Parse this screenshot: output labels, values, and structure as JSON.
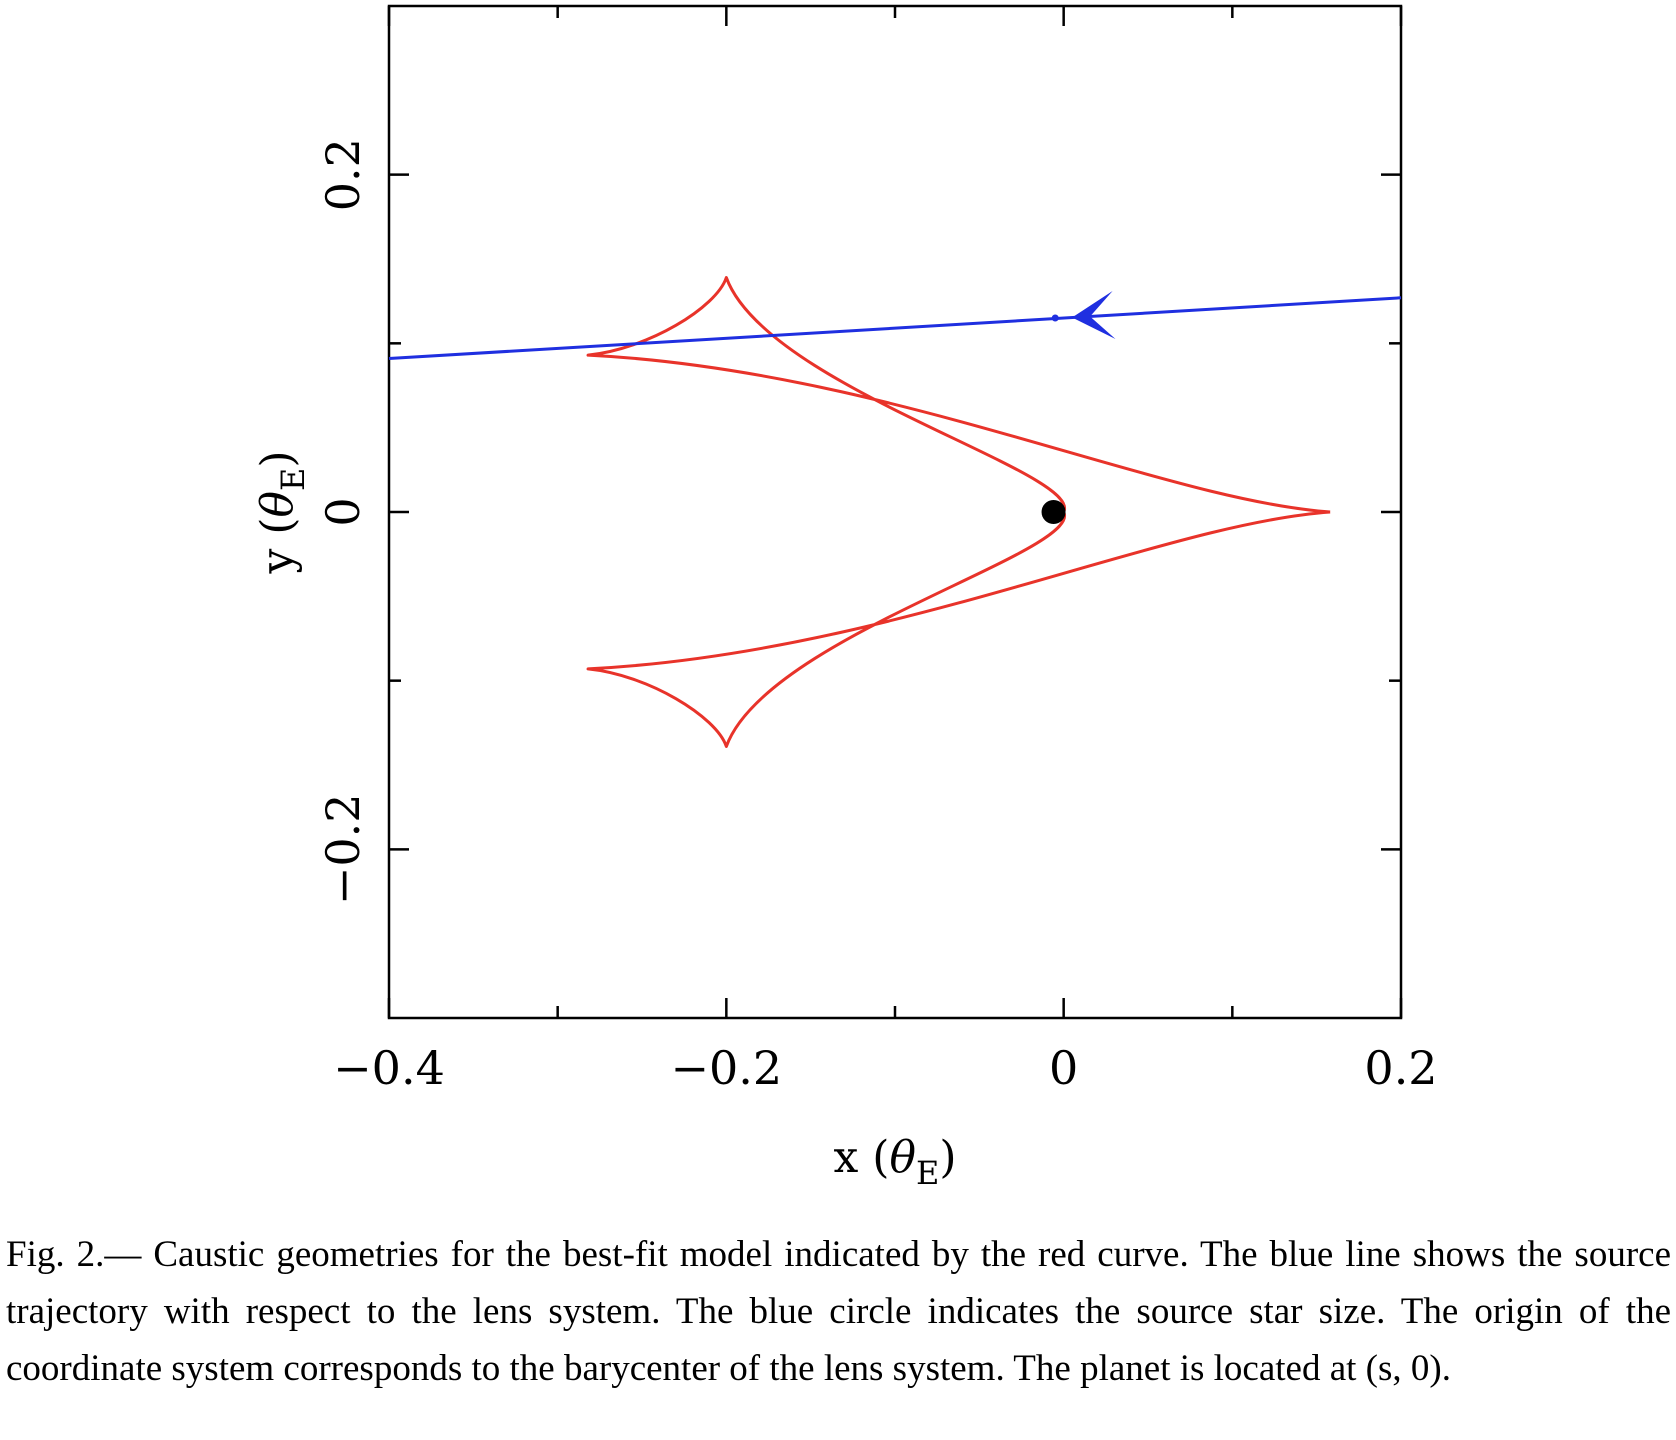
{
  "chart_data": {
    "type": "line",
    "xlabel": "x",
    "xlabel_unit_symbol": "θ",
    "xlabel_unit_sub": "E",
    "ylabel": "y",
    "ylabel_unit_symbol": "θ",
    "ylabel_unit_sub": "E",
    "xlim": [
      -0.4,
      0.2
    ],
    "ylim": [
      -0.3,
      0.3
    ],
    "x_tick_labels": [
      {
        "value": -0.4,
        "label": "−0.4"
      },
      {
        "value": -0.2,
        "label": "−0.2"
      },
      {
        "value": 0,
        "label": "0"
      },
      {
        "value": 0.2,
        "label": "0.2"
      }
    ],
    "y_tick_labels": [
      {
        "value": -0.2,
        "label": "−0.2"
      },
      {
        "value": 0,
        "label": "0"
      },
      {
        "value": 0.2,
        "label": "0.2"
      }
    ],
    "x_minor_ticks": [
      -0.3,
      -0.1,
      0.1
    ],
    "y_minor_ticks": [
      -0.1,
      0.1
    ],
    "grid": false,
    "caustic": {
      "color": "#e8332a",
      "cusps": [
        {
          "x": 0.158,
          "y": 0.0
        },
        {
          "x": -0.282,
          "y": 0.093
        },
        {
          "x": -0.2,
          "y": 0.139
        },
        {
          "x": -0.282,
          "y": -0.093
        },
        {
          "x": -0.2,
          "y": -0.139
        }
      ],
      "inner_vertex": {
        "x": 0.0,
        "y": 0.0
      }
    },
    "trajectory": {
      "color": "#1f2fe0",
      "start": {
        "x": 0.2,
        "y": 0.127
      },
      "end": {
        "x": -0.4,
        "y": 0.091
      },
      "arrow_at_x": 0.005
    },
    "source_star": {
      "x": -0.005,
      "y": 0.115,
      "color": "#1f2fe0"
    },
    "marker": {
      "x": -0.006,
      "y": 0.0,
      "color": "#000000"
    }
  },
  "caption": {
    "text": "Fig. 2.— Caustic geometries for the best-fit model indicated by the red curve. The blue line shows the source trajectory with respect to the lens system. The blue circle indicates the source star size. The origin of the coordinate system corresponds to the barycenter of the lens system. The planet is located at (s, 0)."
  }
}
